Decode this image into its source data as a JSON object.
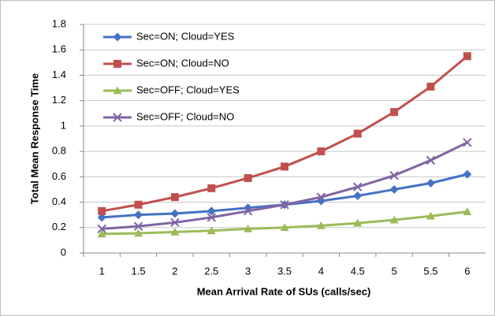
{
  "chart_data": {
    "type": "line",
    "x_label": "Mean Arrival Rate of SUs (calls/sec)",
    "y_label": "Total Mean Response Time",
    "categories": [
      "1",
      "1.5",
      "2",
      "2.5",
      "3",
      "3.5",
      "4",
      "4.5",
      "5",
      "5.5",
      "6"
    ],
    "series": [
      {
        "name": "Sec=ON; Cloud=YES",
        "color": "#4472c4",
        "marker": "diamond",
        "values": [
          0.28,
          0.3,
          0.31,
          0.33,
          0.355,
          0.38,
          0.41,
          0.45,
          0.5,
          0.55,
          0.62
        ]
      },
      {
        "name": "Sec=ON; Cloud=NO",
        "color": "#c0504d",
        "marker": "square",
        "values": [
          0.33,
          0.38,
          0.44,
          0.51,
          0.59,
          0.68,
          0.8,
          0.94,
          1.11,
          1.31,
          1.55
        ]
      },
      {
        "name": "Sec=OFF; Cloud=YES",
        "color": "#9bbb59",
        "marker": "triangle",
        "values": [
          0.15,
          0.155,
          0.165,
          0.175,
          0.19,
          0.2,
          0.215,
          0.235,
          0.26,
          0.29,
          0.325
        ]
      },
      {
        "name": "Sec=OFF; Cloud=NO",
        "color": "#8064a2",
        "marker": "x",
        "values": [
          0.19,
          0.21,
          0.24,
          0.28,
          0.33,
          0.38,
          0.44,
          0.52,
          0.61,
          0.73,
          0.87
        ]
      }
    ],
    "ylim": [
      0,
      1.8
    ],
    "yticks": [
      0,
      0.2,
      0.4,
      0.6,
      0.8,
      1,
      1.2,
      1.4,
      1.6,
      1.8
    ],
    "grid": true,
    "legend": "upper left"
  }
}
